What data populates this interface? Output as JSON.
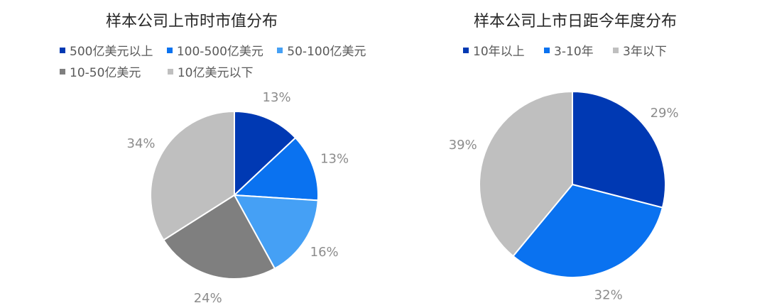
{
  "chart_data": [
    {
      "type": "pie",
      "title": "样本公司上市时市值分布",
      "legend_position": "top",
      "slices": [
        {
          "label": "500亿美元以上",
          "value": 13,
          "display": "13%",
          "color": "#0039b3"
        },
        {
          "label": "100-500亿美元",
          "value": 13,
          "display": "13%",
          "color": "#0a72f0"
        },
        {
          "label": "50-100亿美元",
          "value": 16,
          "display": "16%",
          "color": "#45a0f5"
        },
        {
          "label": "10-50亿美元",
          "value": 24,
          "display": "24%",
          "color": "#7f7f7f"
        },
        {
          "label": "10亿美元以下",
          "value": 34,
          "display": "34%",
          "color": "#bfbfbf"
        }
      ]
    },
    {
      "type": "pie",
      "title": "样本公司上市日距今年度分布",
      "legend_position": "top",
      "slices": [
        {
          "label": "10年以上",
          "value": 29,
          "display": "29%",
          "color": "#0039b3"
        },
        {
          "label": "3-10年",
          "value": 32,
          "display": "32%",
          "color": "#0a72f0"
        },
        {
          "label": "3年以下",
          "value": 39,
          "display": "39%",
          "color": "#bfbfbf"
        }
      ]
    }
  ]
}
